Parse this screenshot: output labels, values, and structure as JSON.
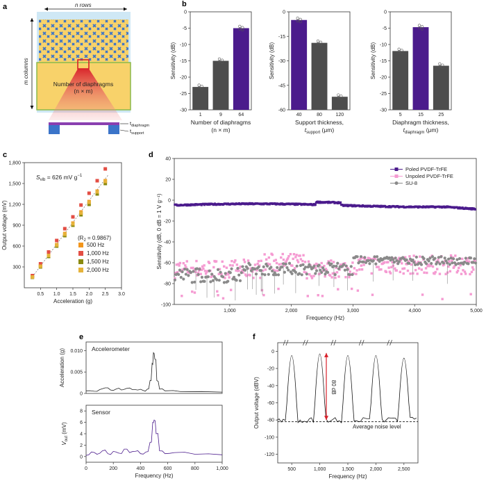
{
  "panel_labels": [
    "a",
    "b",
    "c",
    "d",
    "e",
    "f"
  ],
  "colors": {
    "purple": "#4b1b8c",
    "gray": "#4d4d4d",
    "pink": "#f59bd2",
    "lightgray": "#8a8a8a",
    "yellow": "#f8d26a",
    "blue": "#3b74c9",
    "red": "#d8202a",
    "orange500": "#f2951c",
    "red1000": "#e34e44",
    "olive1500": "#8a8a10",
    "yellow2000": "#e5b33a"
  },
  "panel_a": {
    "n_rows": "n rows",
    "m_columns": "m columns",
    "label_line1": "Number of diaphragms",
    "label_line2": "(n × m)",
    "t_diaphragm": "t",
    "t_diaphragm_sub": "diaphragm",
    "t_support": "t",
    "t_support_sub": "support"
  },
  "chart_data": [
    {
      "id": "b1",
      "type": "bar",
      "categories": [
        "1",
        "9",
        "64"
      ],
      "values": [
        -23,
        -15,
        -5
      ],
      "highlight_index": 2,
      "ylim": [
        -30,
        0
      ],
      "yticks": [
        "0",
        "-5",
        "-10",
        "-15",
        "-20",
        "-25",
        "-30"
      ],
      "ylabel": "Sensitivity (dB)",
      "xlabel_line1": "Number of diaphragms",
      "xlabel_line2": "(n × m)"
    },
    {
      "id": "b2",
      "type": "bar",
      "categories": [
        "40",
        "80",
        "120"
      ],
      "values": [
        -5,
        -19,
        -52
      ],
      "highlight_index": 0,
      "ylim": [
        -60,
        0
      ],
      "yticks": [
        "0",
        "-15",
        "-30",
        "-45",
        "-60"
      ],
      "ylabel": "Sensitivity (dB)",
      "xlabel_line1": "Support thickness,",
      "xlabel_line2": "t",
      "xlabel_sub": "support",
      "xlabel_unit": " (μm)"
    },
    {
      "id": "b3",
      "type": "bar",
      "categories": [
        "5",
        "15",
        "25"
      ],
      "values": [
        -12,
        -4.7,
        -16.5
      ],
      "highlight_index": 1,
      "ylim": [
        -30,
        0
      ],
      "yticks": [
        "0",
        "-5",
        "-10",
        "-15",
        "-20",
        "-25",
        "-30"
      ],
      "ylabel": "Sensitivity (dB)",
      "xlabel_line1": "Diaphragm thickness,",
      "xlabel_line2": "t",
      "xlabel_sub": "diaphragm",
      "xlabel_unit": " (μm)"
    },
    {
      "id": "c",
      "type": "scatter",
      "xlabel": "Acceleration (g)",
      "ylabel": "Output voltage (mV)",
      "xlim": [
        0,
        3.0
      ],
      "ylim": [
        0,
        1800
      ],
      "xticks": [
        "0.5",
        "1.0",
        "1.5",
        "2.0",
        "2.5",
        "3.0"
      ],
      "yticks": [
        "300",
        "600",
        "900",
        "1,200",
        "1,500",
        "1,800"
      ],
      "x": [
        0.25,
        0.5,
        0.75,
        1.0,
        1.25,
        1.5,
        1.75,
        2.0,
        2.25,
        2.5
      ],
      "series": [
        {
          "name": "500 Hz",
          "values": [
            160,
            320,
            470,
            620,
            780,
            930,
            1090,
            1240,
            1390,
            1540
          ]
        },
        {
          "name": "1,000 Hz",
          "values": [
            175,
            345,
            515,
            680,
            850,
            1020,
            1190,
            1360,
            1540,
            1710
          ]
        },
        {
          "name": "1,500 Hz",
          "values": [
            150,
            300,
            450,
            600,
            750,
            900,
            1050,
            1200,
            1350,
            1500
          ]
        },
        {
          "name": "2,000 Hz",
          "values": [
            155,
            310,
            465,
            615,
            770,
            920,
            1075,
            1230,
            1380,
            1530
          ]
        }
      ],
      "annotation_s": "S",
      "annotation_s_sub": "vib",
      "annotation_s_value": " = 626 mV g",
      "annotation_s_exp": "−1",
      "annotation_r": "(R",
      "annotation_r_sub": "2",
      "annotation_r_value": " = 0.9867)"
    },
    {
      "id": "d",
      "type": "scatter",
      "xlabel": "Frequency (Hz)",
      "ylabel": "Sensitivity (dB, 0 dB = 1 V g⁻¹)",
      "xlim": [
        100,
        5000
      ],
      "ylim": [
        -100,
        40
      ],
      "xticks": [
        "1,000",
        "2,000",
        "3,000",
        "4,000",
        "5,000"
      ],
      "yticks": [
        "40",
        "20",
        "0",
        "-20",
        "-40",
        "-60",
        "-80",
        "-100"
      ],
      "series": [
        {
          "name": "Poled PVDF-TrFE",
          "level": -4
        },
        {
          "name": "Unpoled PVDF-TrFE",
          "level": -66
        },
        {
          "name": "SU-8",
          "level": -64
        }
      ]
    },
    {
      "id": "e_top",
      "type": "line",
      "title": "Accelerometer",
      "ylabel": "Acceleration (g)",
      "ylim": [
        0,
        0.012
      ],
      "yticks": [
        "0",
        "0.005",
        "0.010"
      ],
      "xlim": [
        0,
        1000
      ],
      "x": [
        0,
        60,
        100,
        140,
        180,
        220,
        260,
        300,
        340,
        380,
        420,
        450,
        470,
        485,
        495,
        505,
        520,
        540,
        580,
        700,
        1000
      ],
      "values": [
        0.0006,
        0.0005,
        0.0009,
        0.0013,
        0.0008,
        0.001,
        0.0008,
        0.0012,
        0.0009,
        0.0008,
        0.0007,
        0.001,
        0.003,
        0.007,
        0.0095,
        0.008,
        0.003,
        0.001,
        0.0006,
        0.0004,
        0.0003
      ]
    },
    {
      "id": "e_bottom",
      "type": "line",
      "title": "Sensor",
      "ylabel": "V",
      "ylabel_sub": "out",
      "ylabel_unit": " (mV)",
      "xlabel": "Frequency (Hz)",
      "ylim": [
        -1,
        9
      ],
      "yticks": [
        "0",
        "2",
        "4",
        "6",
        "8"
      ],
      "xlim": [
        0,
        1000
      ],
      "xticks": [
        "0",
        "200",
        "400",
        "600",
        "800",
        "1,000"
      ],
      "x": [
        0,
        40,
        80,
        120,
        160,
        200,
        240,
        280,
        320,
        360,
        400,
        440,
        470,
        490,
        500,
        515,
        540,
        580,
        650,
        800,
        1000
      ],
      "values": [
        0.2,
        0.8,
        0.4,
        1.0,
        0.5,
        0.9,
        0.6,
        1.3,
        0.7,
        0.9,
        0.5,
        0.8,
        2.5,
        6.0,
        6.4,
        4.0,
        1.0,
        0.5,
        0.7,
        0.4,
        0.3
      ]
    },
    {
      "id": "f",
      "type": "line",
      "xlabel": "Frequency (Hz)",
      "ylabel": "Output voltage (dBV)",
      "ylim": [
        -130,
        10
      ],
      "yticks": [
        "0",
        "-20",
        "-40",
        "-60",
        "-80",
        "-100",
        "-120"
      ],
      "xticks": [
        "500",
        "1,000",
        "1,500",
        "2,000",
        "2,500"
      ],
      "peaks": [
        500,
        1000,
        1500,
        2000,
        2500
      ],
      "peak_levels": [
        -5,
        -3,
        -5,
        -5,
        -8
      ],
      "noise_level": -82,
      "noise_label": "Average noise level",
      "delta_label": "80 dB"
    }
  ]
}
